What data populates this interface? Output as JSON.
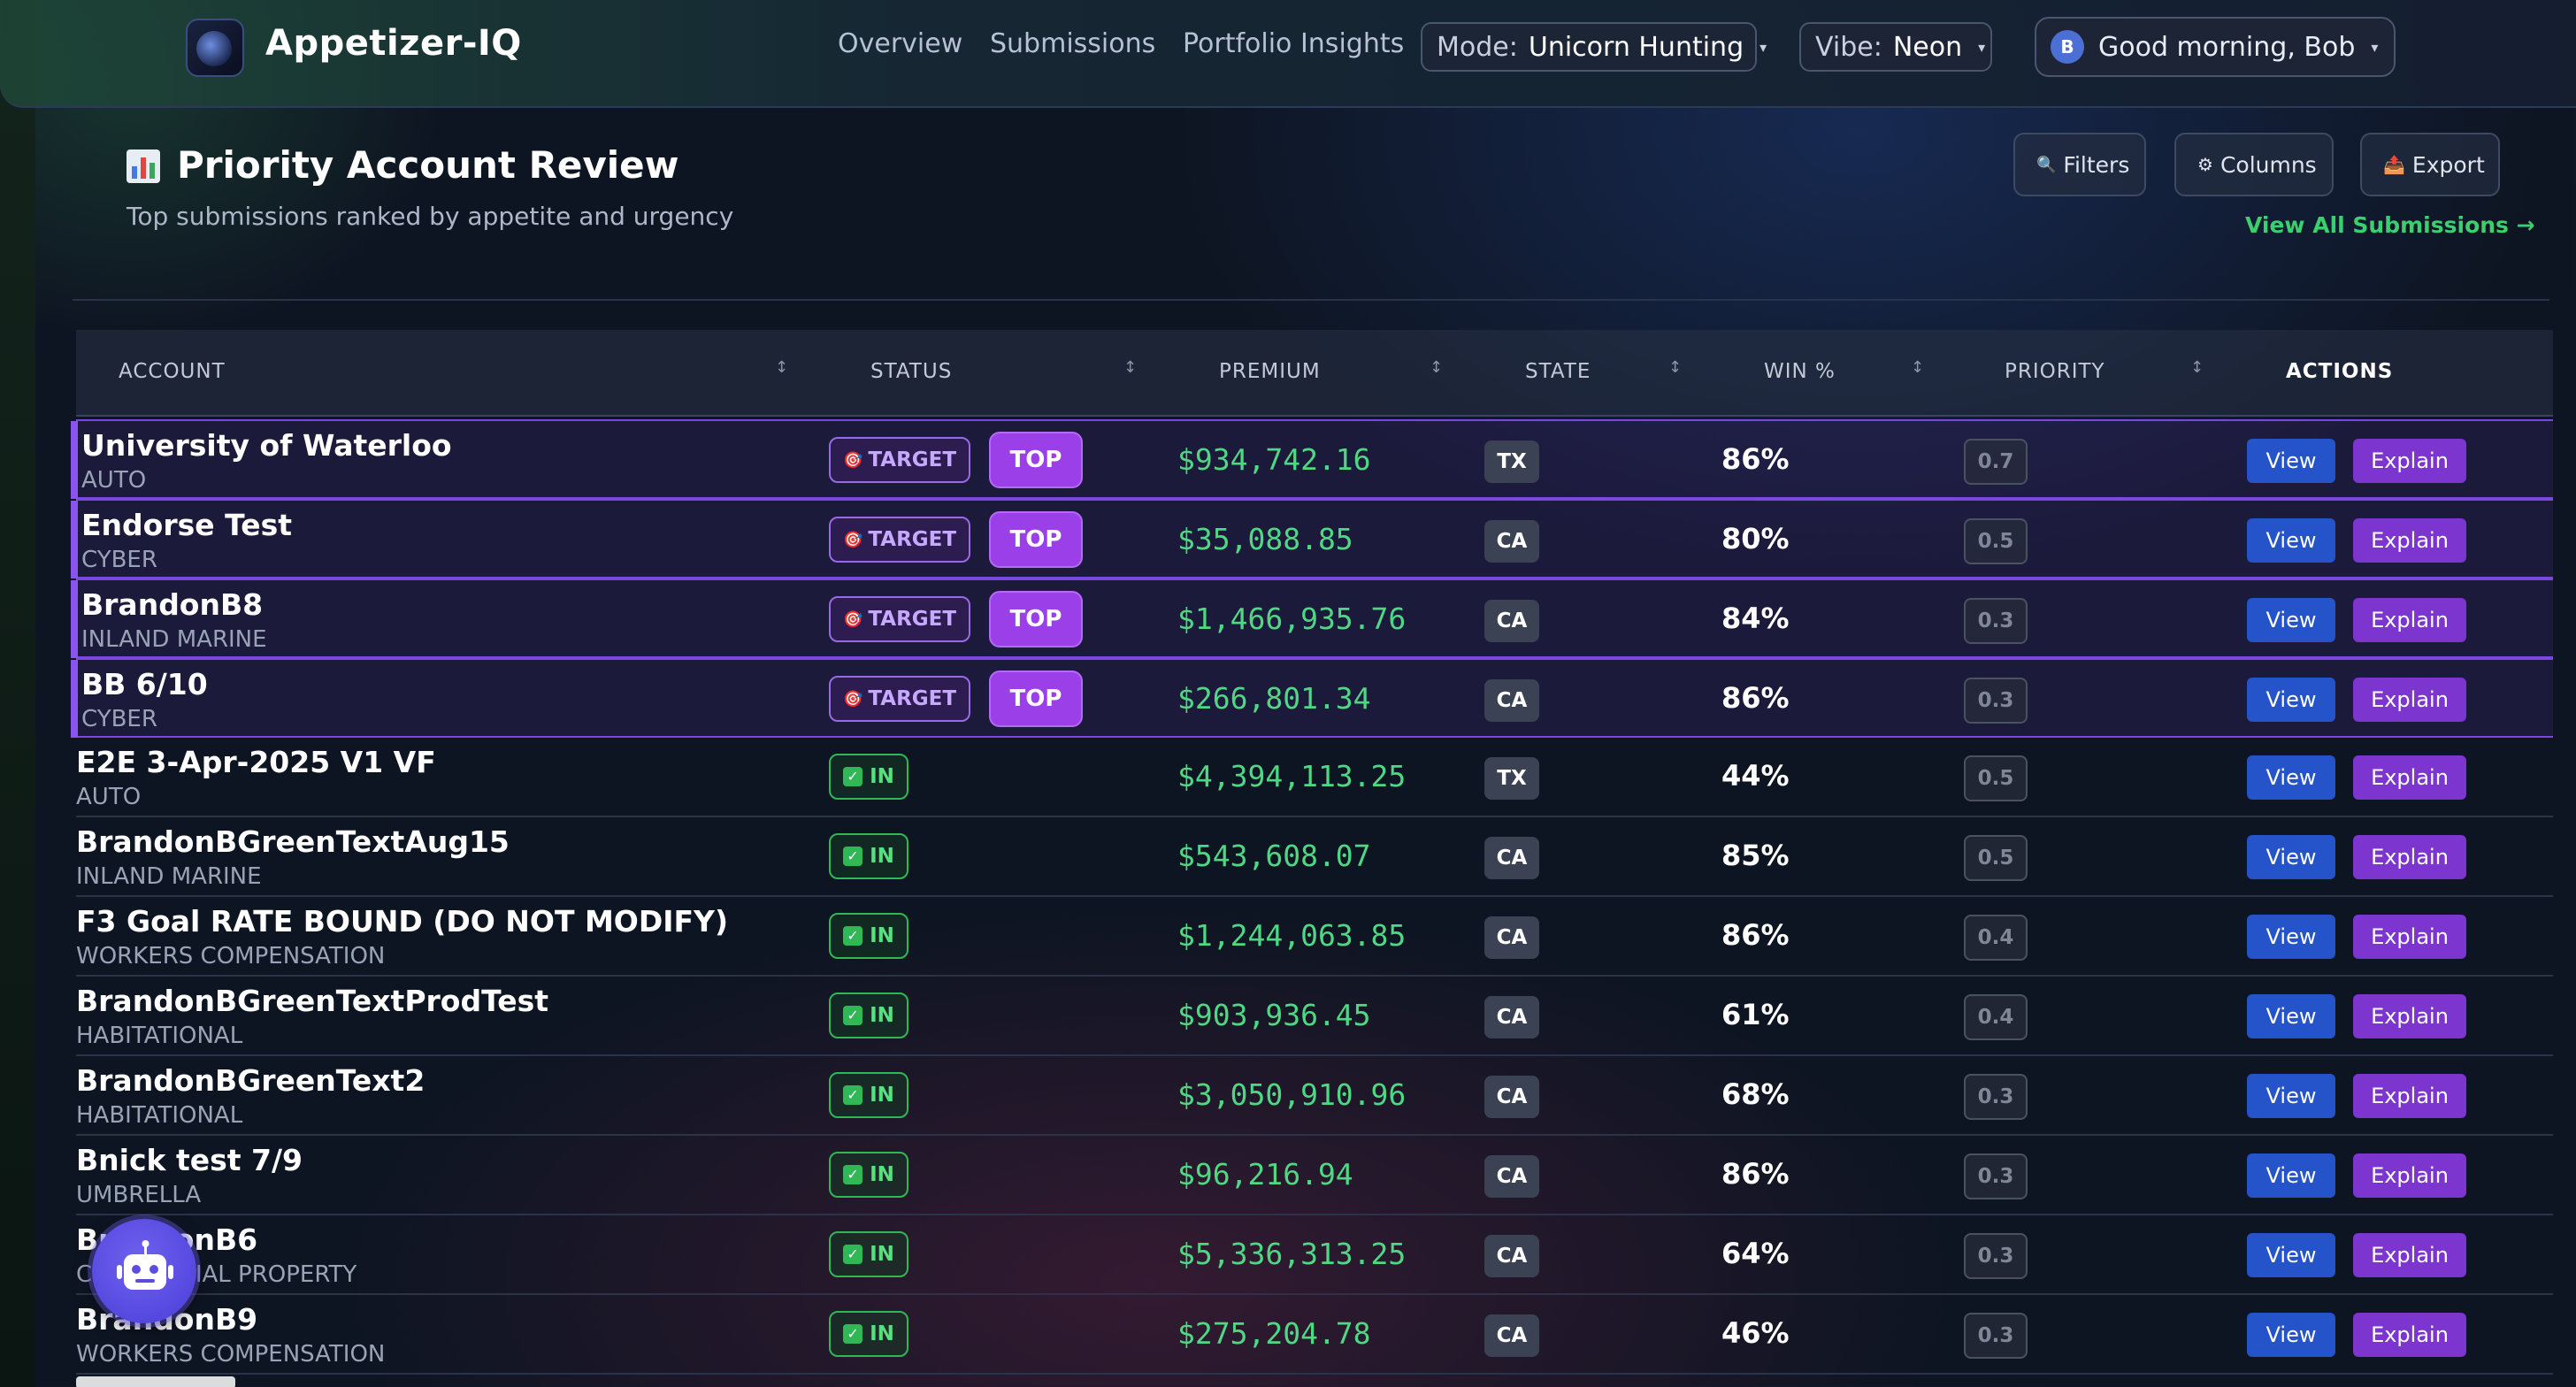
{
  "header": {
    "brand": "Appetizer-IQ",
    "nav": [
      "Overview",
      "Submissions",
      "Portfolio Insights"
    ],
    "mode": {
      "label": "Mode:",
      "value": "Unicorn Hunting"
    },
    "vibe": {
      "label": "Vibe:",
      "value": "Neon"
    },
    "user": {
      "initial": "B",
      "greeting": "Good morning, Bob"
    }
  },
  "panel": {
    "title_icon": "bar-chart-icon",
    "title": "Priority Account Review",
    "subtitle": "Top submissions ranked by appetite and urgency",
    "filters_label": "Filters",
    "columns_label": "Columns",
    "export_label": "Export",
    "view_all": "View All Submissions →"
  },
  "table": {
    "headers": {
      "account": "ACCOUNT",
      "status": "STATUS",
      "premium": "PREMIUM",
      "state": "STATE",
      "win": "WIN %",
      "priority": "PRIORITY",
      "actions": "ACTIONS"
    },
    "view_label": "View",
    "explain_label": "Explain",
    "target_label": "TARGET",
    "top_label": "TOP",
    "in_label": "IN",
    "rows": [
      {
        "account": "University of Waterloo",
        "line": "AUTO",
        "status": "target",
        "premium": "$934,742.16",
        "state": "TX",
        "win": "86%",
        "priority": "0.7"
      },
      {
        "account": "Endorse Test",
        "line": "CYBER",
        "status": "target",
        "premium": "$35,088.85",
        "state": "CA",
        "win": "80%",
        "priority": "0.5"
      },
      {
        "account": "BrandonB8",
        "line": "INLAND MARINE",
        "status": "target",
        "premium": "$1,466,935.76",
        "state": "CA",
        "win": "84%",
        "priority": "0.3"
      },
      {
        "account": "BB 6/10",
        "line": "CYBER",
        "status": "target",
        "premium": "$266,801.34",
        "state": "CA",
        "win": "86%",
        "priority": "0.3"
      },
      {
        "account": "E2E 3-Apr-2025 V1 VF",
        "line": "AUTO",
        "status": "in",
        "premium": "$4,394,113.25",
        "state": "TX",
        "win": "44%",
        "priority": "0.5"
      },
      {
        "account": "BrandonBGreenTextAug15",
        "line": "INLAND MARINE",
        "status": "in",
        "premium": "$543,608.07",
        "state": "CA",
        "win": "85%",
        "priority": "0.5"
      },
      {
        "account": "F3 Goal RATE BOUND (DO NOT MODIFY)",
        "line": "WORKERS COMPENSATION",
        "status": "in",
        "premium": "$1,244,063.85",
        "state": "CA",
        "win": "86%",
        "priority": "0.4"
      },
      {
        "account": "BrandonBGreenTextProdTest",
        "line": "HABITATIONAL",
        "status": "in",
        "premium": "$903,936.45",
        "state": "CA",
        "win": "61%",
        "priority": "0.4"
      },
      {
        "account": "BrandonBGreenText2",
        "line": "HABITATIONAL",
        "status": "in",
        "premium": "$3,050,910.96",
        "state": "CA",
        "win": "68%",
        "priority": "0.3"
      },
      {
        "account": "Bnick test 7/9",
        "line": "UMBRELLA",
        "status": "in",
        "premium": "$96,216.94",
        "state": "CA",
        "win": "86%",
        "priority": "0.3"
      },
      {
        "account": "BrandonB6",
        "line": "COMMERCIAL PROPERTY",
        "status": "in",
        "premium": "$5,336,313.25",
        "state": "CA",
        "win": "64%",
        "priority": "0.3"
      },
      {
        "account": "BrandonB9",
        "line": "WORKERS COMPENSATION",
        "status": "in",
        "premium": "$275,204.78",
        "state": "CA",
        "win": "46%",
        "priority": "0.3"
      }
    ]
  },
  "assistant_icon": "robot-icon"
}
